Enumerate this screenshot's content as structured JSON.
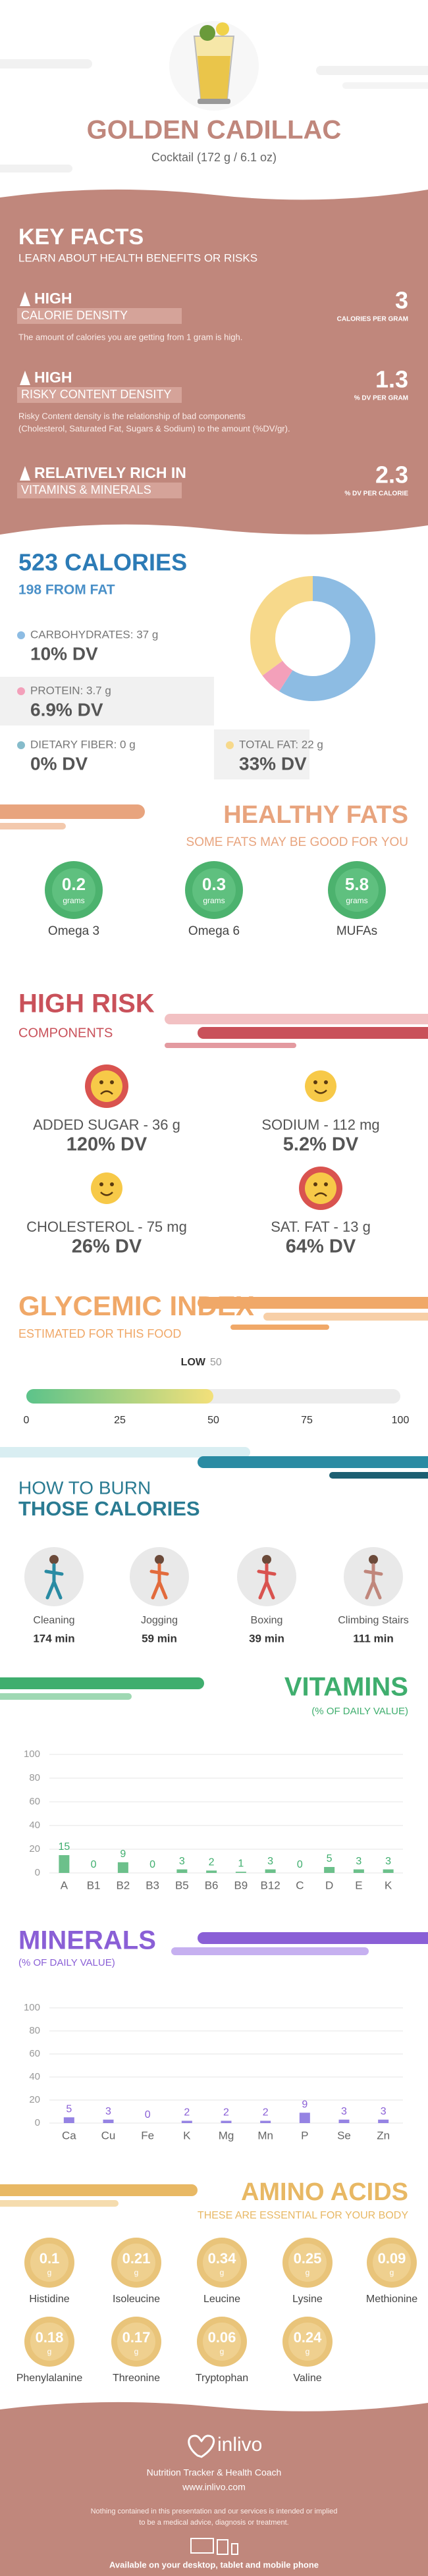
{
  "header": {
    "title": "GOLDEN CADILLAC",
    "subtitle": "Cocktail (172 g / 6.1 oz)"
  },
  "key_facts": {
    "title": "KEY FACTS",
    "subtitle": "LEARN ABOUT HEALTH BENEFITS OR RISKS",
    "items": [
      {
        "level": "HIGH",
        "name": "CALORIE DENSITY",
        "description": [
          "The amount of calories you are getting from 1 gram is high."
        ],
        "value": 3,
        "unit": "CALORIES PER GRAM"
      },
      {
        "level": "HIGH",
        "name": "RISKY CONTENT DENSITY",
        "description": [
          "Risky Content density is the relationship of bad components",
          "(Cholesterol, Saturated Fat, Sugars & Sodium) to the amount (%DV/gr)."
        ],
        "value": 1.3,
        "unit": "% DV PER GRAM"
      },
      {
        "level": "RELATIVELY RICH IN",
        "name": "VITAMINS & MINERALS",
        "value": 2.3,
        "unit": "% DV PER CALORIE"
      }
    ]
  },
  "calories": {
    "title": "523 CALORIES",
    "subtitle": "198 FROM FAT",
    "nutrients": [
      {
        "label": "CARBOHYDRATES: 37 g",
        "dv": "10% DV",
        "grams": 37,
        "color": "#8dbce3"
      },
      {
        "label": "PROTEIN: 3.7 g",
        "dv": "6.9% DV",
        "grams": 3.7,
        "color": "#f3a0ba"
      },
      {
        "label": "DIETARY FIBER: 0 g",
        "dv": "0% DV",
        "grams": 0,
        "color": "#86bccb"
      },
      {
        "label": "TOTAL FAT: 22 g",
        "dv": "33% DV",
        "grams": 22,
        "color": "#f7d98b"
      }
    ]
  },
  "healthy_fats": {
    "title": "HEALTHY FATS",
    "subtitle": "SOME FATS MAY BE GOOD FOR YOU",
    "unit": "grams",
    "items": [
      {
        "name": "Omega 3",
        "value": 0.2
      },
      {
        "name": "Omega 6",
        "value": 0.3
      },
      {
        "name": "MUFAs",
        "value": 5.8
      }
    ]
  },
  "high_risk": {
    "title": "HIGH RISK",
    "subtitle": "COMPONENTS",
    "items": [
      {
        "label": "ADDED SUGAR - 36 g",
        "dv": "120% DV",
        "mood": "sad"
      },
      {
        "label": "SODIUM - 112 mg",
        "dv": "5.2% DV",
        "mood": "happy"
      },
      {
        "label": "CHOLESTEROL - 75 mg",
        "dv": "26% DV",
        "mood": "happy"
      },
      {
        "label": "SAT. FAT - 13 g",
        "dv": "64% DV",
        "mood": "sad"
      }
    ]
  },
  "chart_data": [
    {
      "type": "gauge",
      "title": "GLYCEMIC INDEX",
      "subtitle": "ESTIMATED FOR THIS FOOD",
      "level": "LOW",
      "value": 50,
      "xlim": [
        0,
        100
      ],
      "xticks": [
        0,
        25,
        50,
        75,
        100
      ]
    },
    {
      "type": "bar",
      "title": "VITAMINS",
      "subtitle": "(% OF DAILY VALUE)",
      "categories": [
        "A",
        "B1",
        "B2",
        "B3",
        "B5",
        "B6",
        "B9",
        "B12",
        "C",
        "D",
        "E",
        "K"
      ],
      "values": [
        15,
        0,
        9,
        0,
        3,
        2,
        1,
        3,
        0,
        5,
        3,
        3
      ],
      "color": "#6cc08b",
      "ylim": [
        0,
        100
      ],
      "yticks": [
        0,
        20,
        40,
        60,
        80,
        100
      ],
      "grid": true
    },
    {
      "type": "bar",
      "title": "MINERALS",
      "subtitle": "(% OF DAILY VALUE)",
      "categories": [
        "Ca",
        "Cu",
        "Fe",
        "K",
        "Mg",
        "Mn",
        "P",
        "Se",
        "Zn"
      ],
      "values": [
        5,
        3,
        0,
        2,
        2,
        2,
        9,
        3,
        3
      ],
      "color": "#9583e3",
      "ylim": [
        0,
        100
      ],
      "yticks": [
        0,
        20,
        40,
        60,
        80,
        100
      ],
      "grid": true
    }
  ],
  "burn": {
    "title": "HOW TO BURN",
    "title2": "THOSE CALORIES",
    "items": [
      {
        "activity": "Cleaning",
        "time": "174 min"
      },
      {
        "activity": "Jogging",
        "time": "59 min"
      },
      {
        "activity": "Boxing",
        "time": "39 min"
      },
      {
        "activity": "Climbing Stairs",
        "time": "111 min"
      }
    ]
  },
  "amino_acids": {
    "title": "AMINO ACIDS",
    "subtitle": "THESE ARE ESSENTIAL FOR YOUR BODY",
    "unit": "g",
    "items": [
      {
        "name": "Histidine",
        "value": 0.1
      },
      {
        "name": "Isoleucine",
        "value": 0.21
      },
      {
        "name": "Leucine",
        "value": 0.34
      },
      {
        "name": "Lysine",
        "value": 0.25
      },
      {
        "name": "Methionine",
        "value": 0.09
      },
      {
        "name": "Phenylalanine",
        "value": 0.18
      },
      {
        "name": "Threonine",
        "value": 0.17
      },
      {
        "name": "Tryptophan",
        "value": 0.06
      },
      {
        "name": "Valine",
        "value": 0.24
      }
    ]
  },
  "footer": {
    "brand": "inlivo",
    "tagline": "Nutrition Tracker & Health Coach",
    "url": "www.inlivo.com",
    "disclaimer": [
      "Nothing contained in this presentation and our services is intended or implied",
      "to be a medical advice, diagnosis or treatment."
    ],
    "available": "Available on your desktop, tablet and mobile phone"
  }
}
